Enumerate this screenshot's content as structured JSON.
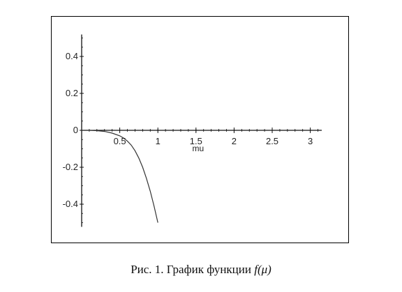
{
  "caption": {
    "label": "Рис. 1.",
    "text": "График функции",
    "function": "f(μ)"
  },
  "chart_data": {
    "type": "line",
    "title": "",
    "xlabel": "mu",
    "ylabel": "",
    "xlim": [
      0,
      3.15
    ],
    "ylim": [
      -0.5,
      0.5
    ],
    "xticks": [
      0.5,
      1,
      1.5,
      2,
      2.5,
      3
    ],
    "xtick_labels": [
      "0.5",
      "1",
      "1.5",
      "2",
      "2.5",
      "3"
    ],
    "yticks": [
      -0.4,
      -0.2,
      0,
      0.2,
      0.4
    ],
    "ytick_labels": [
      "-0.4",
      "-0.2",
      "0",
      "0.2",
      "0.4"
    ],
    "grid": false,
    "series": [
      {
        "color": "#333333",
        "x": [
          0.0,
          0.1,
          0.2,
          0.3,
          0.4,
          0.5,
          0.55,
          0.6,
          0.65,
          0.7,
          0.75,
          0.8,
          0.85,
          0.9,
          0.95,
          1.0
        ],
        "y": [
          0.0,
          0.0,
          -0.002,
          -0.006,
          -0.015,
          -0.03,
          -0.042,
          -0.058,
          -0.08,
          -0.11,
          -0.15,
          -0.2,
          -0.26,
          -0.33,
          -0.41,
          -0.5
        ]
      }
    ]
  }
}
